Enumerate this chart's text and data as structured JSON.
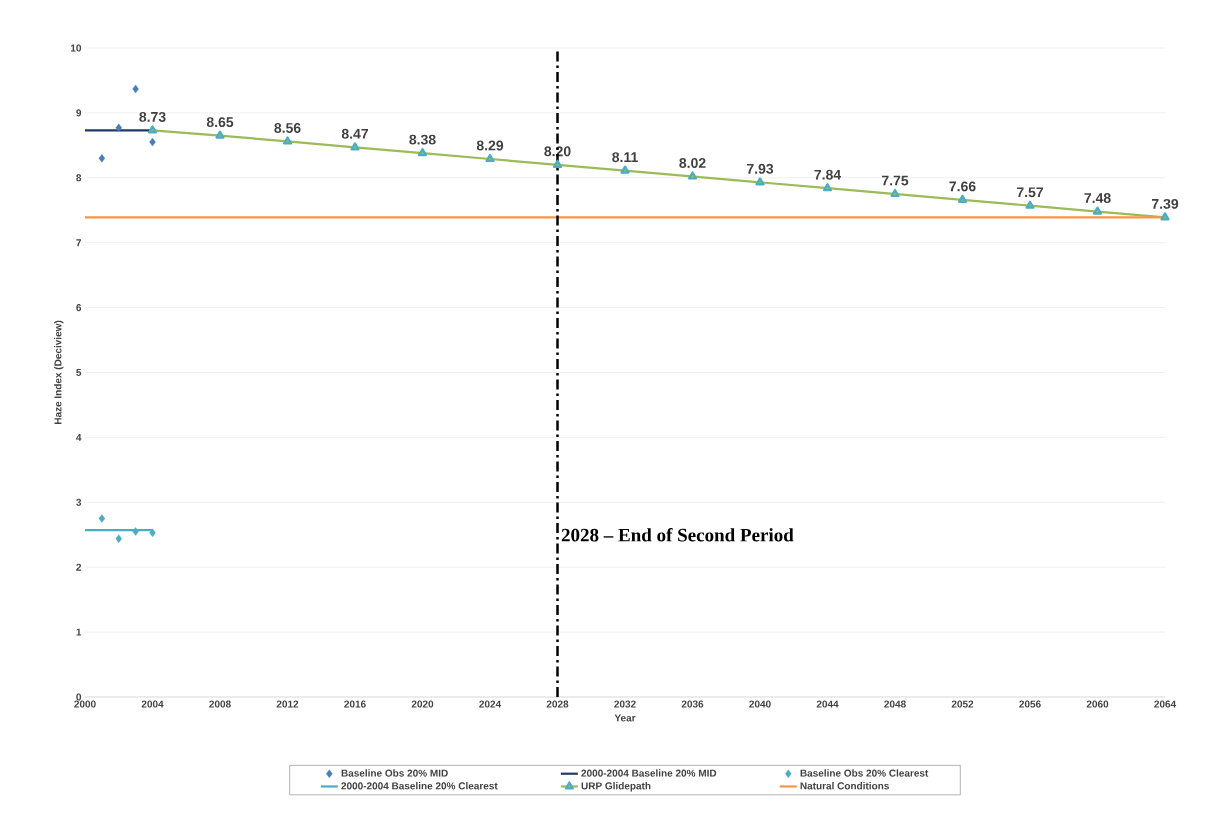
{
  "chart_data": {
    "type": "line",
    "xlabel": "Year",
    "ylabel": "Haze Index (Deciview)",
    "xlim": [
      2000,
      2064
    ],
    "ylim": [
      0,
      10
    ],
    "xticks": [
      2000,
      2004,
      2008,
      2012,
      2016,
      2020,
      2024,
      2028,
      2032,
      2036,
      2040,
      2044,
      2048,
      2052,
      2056,
      2060,
      2064
    ],
    "yticks": [
      0,
      1,
      2,
      3,
      4,
      5,
      6,
      7,
      8,
      9,
      10
    ],
    "grid": "y",
    "legend": "bottom",
    "series": [
      {
        "name": "Baseline Obs 20% MID",
        "type": "scatter",
        "marker": "diamond",
        "color": "#4a7ebb",
        "x": [
          2001,
          2002,
          2003,
          2004
        ],
        "values": [
          8.3,
          8.77,
          9.37,
          8.55
        ]
      },
      {
        "name": "2000-2004 Baseline 20% MID",
        "color": "#1f3864",
        "x": [
          2000,
          2004
        ],
        "values": [
          8.73,
          8.73
        ]
      },
      {
        "name": "Baseline Obs 20% Clearest",
        "type": "scatter",
        "marker": "diamond",
        "color": "#4bacc6",
        "x": [
          2001,
          2002,
          2003,
          2004
        ],
        "values": [
          2.75,
          2.44,
          2.55,
          2.53
        ]
      },
      {
        "name": "2000-2004 Baseline 20% Clearest",
        "color": "#4bacc6",
        "x": [
          2000,
          2004
        ],
        "values": [
          2.57,
          2.57
        ]
      },
      {
        "name": "URP Glidepath",
        "marker": "triangle",
        "color": "#9bbb59",
        "x": [
          2004,
          2008,
          2012,
          2016,
          2020,
          2024,
          2028,
          2032,
          2036,
          2040,
          2044,
          2048,
          2052,
          2056,
          2060,
          2064
        ],
        "values": [
          8.73,
          8.65,
          8.56,
          8.47,
          8.38,
          8.29,
          8.2,
          8.11,
          8.02,
          7.93,
          7.84,
          7.75,
          7.66,
          7.57,
          7.48,
          7.39
        ],
        "value_labels": [
          "8.73",
          "8.65",
          "8.56",
          "8.47",
          "8.38",
          "8.29",
          "8.20",
          "8.11",
          "8.02",
          "7.93",
          "7.84",
          "7.75",
          "7.66",
          "7.57",
          "7.48",
          "7.39"
        ]
      },
      {
        "name": "Natural Conditions",
        "color": "#f79646",
        "x": [
          2000,
          2064
        ],
        "values": [
          7.39,
          7.39
        ]
      }
    ],
    "ref_lines": [
      {
        "axis": "x",
        "value": 2028,
        "label": "2028 – End of Second Period",
        "color": "#000000",
        "line_style": "dashdot"
      }
    ]
  }
}
